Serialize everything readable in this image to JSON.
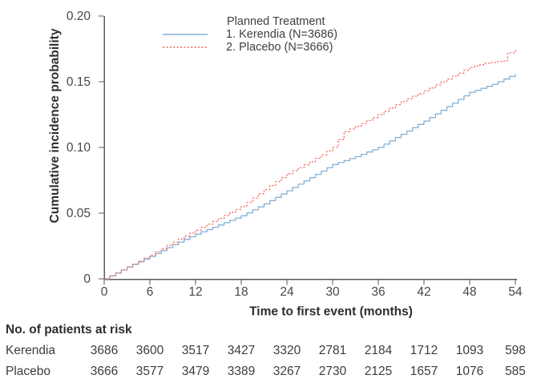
{
  "figure": {
    "legend": {
      "title": "Planned Treatment",
      "items": [
        {
          "label": "1. Kerendia (N=3686)",
          "color": "#84b1d7",
          "style": "solid"
        },
        {
          "label": "2. Placebo (N=3666)",
          "color": "#ef6e5e",
          "style": "dotted"
        }
      ]
    },
    "colors": {
      "kerendia_line": "#84b1d7",
      "placebo_line": "#ef6e5e",
      "axis": "#58595b",
      "tick_text": "#47474a",
      "bold_text": "#2e2e30"
    }
  },
  "chart_data": {
    "type": "line",
    "subtype": "cumulative-incidence-step-curves",
    "title": "",
    "xlabel": "Time to first event (months)",
    "ylabel": "Cumulative incidence probability",
    "xlim": [
      0,
      54
    ],
    "ylim": [
      0,
      0.2
    ],
    "xticks": [
      0,
      6,
      12,
      18,
      24,
      30,
      36,
      42,
      48,
      54
    ],
    "yticks": [
      0,
      0.05,
      0.1,
      0.15,
      0.2
    ],
    "ytick_labels": [
      "0",
      "0.05",
      "0.10",
      "0.15",
      "0.20"
    ],
    "grid": false,
    "legend_position": "inside-top",
    "series": [
      {
        "name": "1. Kerendia (N=3686)",
        "color": "#84b1d7",
        "line_style": "solid",
        "x": [
          0,
          3,
          6,
          9,
          12,
          15,
          18,
          21,
          24,
          27,
          30,
          33,
          36,
          39,
          42,
          45,
          48,
          51,
          54
        ],
        "y": [
          0,
          0.009,
          0.017,
          0.026,
          0.034,
          0.041,
          0.048,
          0.057,
          0.067,
          0.077,
          0.087,
          0.093,
          0.1,
          0.11,
          0.12,
          0.131,
          0.142,
          0.148,
          0.156
        ]
      },
      {
        "name": "2. Placebo (N=3666)",
        "color": "#ef6e5e",
        "line_style": "dotted",
        "x": [
          0,
          3,
          6,
          9,
          12,
          15,
          18,
          21,
          24,
          27,
          30,
          31.5,
          33,
          36,
          39,
          42,
          45,
          48,
          50,
          52.5,
          53,
          54
        ],
        "y": [
          0,
          0.009,
          0.018,
          0.028,
          0.037,
          0.046,
          0.055,
          0.068,
          0.08,
          0.089,
          0.1,
          0.112,
          0.116,
          0.125,
          0.135,
          0.143,
          0.152,
          0.161,
          0.164,
          0.166,
          0.172,
          0.175
        ]
      }
    ],
    "risk_table": {
      "heading": "No. of patients at risk",
      "times": [
        0,
        6,
        12,
        18,
        24,
        30,
        36,
        42,
        48,
        54
      ],
      "rows": [
        {
          "label": "Kerendia",
          "counts": [
            3686,
            3600,
            3517,
            3427,
            3320,
            2781,
            2184,
            1712,
            1093,
            598
          ]
        },
        {
          "label": "Placebo",
          "counts": [
            3666,
            3577,
            3479,
            3389,
            3267,
            2730,
            2125,
            1657,
            1076,
            585
          ]
        }
      ]
    }
  }
}
